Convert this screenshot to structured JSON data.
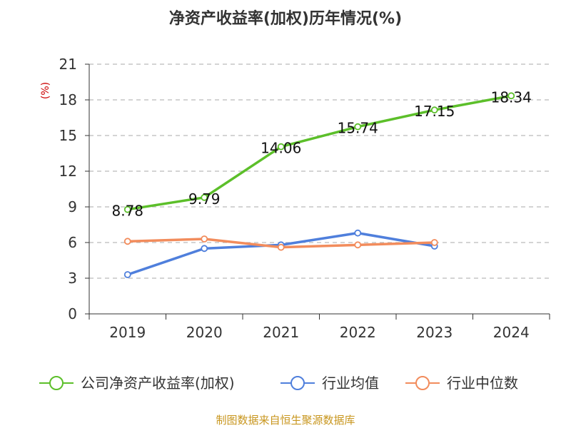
{
  "chart_data": {
    "type": "line",
    "title": "净资产收益率(加权)历年情况(%)",
    "ylabel": "(%)",
    "xlabel": "",
    "categories": [
      "2019",
      "2020",
      "2021",
      "2022",
      "2023",
      "2024"
    ],
    "ylim": [
      0,
      21
    ],
    "yticks": [
      0,
      3,
      6,
      9,
      12,
      15,
      18,
      21
    ],
    "grid": true,
    "legend_position": "bottom",
    "series": [
      {
        "name": "公司净资产收益率(加权)",
        "color": "#5cbf2a",
        "values": [
          8.78,
          9.79,
          14.06,
          15.74,
          17.15,
          18.34
        ],
        "show_labels": true
      },
      {
        "name": "行业均值",
        "color": "#4f7fdc",
        "values": [
          3.3,
          5.5,
          5.8,
          6.8,
          5.7,
          null
        ],
        "show_labels": false
      },
      {
        "name": "行业中位数",
        "color": "#f28c5c",
        "values": [
          6.1,
          6.3,
          5.6,
          5.8,
          6.0,
          null
        ],
        "show_labels": false
      }
    ],
    "data_labels": [
      "8.78",
      "9.79",
      "14.06",
      "15.74",
      "17.15",
      "18.34"
    ]
  },
  "footer": {
    "source": "制图数据来自恒生聚源数据库"
  }
}
